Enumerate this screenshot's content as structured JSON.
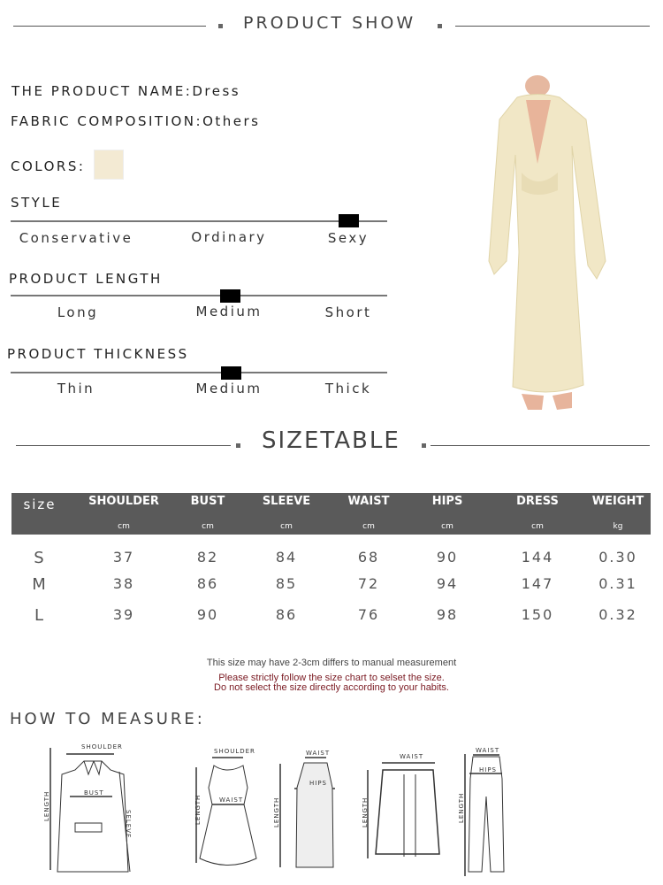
{
  "header": {
    "title": "PRODUCT SHOW"
  },
  "product": {
    "name_label": "THE PRODUCT NAME:",
    "name": "Dress",
    "fabric_label": "FABRIC COMPOSITION:",
    "fabric": "Others",
    "colors_label": "COLORS:",
    "color_swatch": "#f3ead3"
  },
  "scales": [
    {
      "title": "STYLE",
      "options": [
        "Conservative",
        "Ordinary",
        "Sexy"
      ],
      "selected": "Sexy"
    },
    {
      "title": "PRODUCT LENGTH",
      "options": [
        "Long",
        "Medium",
        "Short"
      ],
      "selected": "Medium"
    },
    {
      "title": "PRODUCT THICKNESS",
      "options": [
        "Thin",
        "Medium",
        "Thick"
      ],
      "selected": "Medium"
    }
  ],
  "sizetable": {
    "title": "SIZETABLE",
    "headers": [
      "size",
      "SHOULDER",
      "BUST",
      "SLEEVE",
      "WAIST",
      "HIPS",
      "DRESS",
      "WEIGHT"
    ],
    "units": [
      "",
      "cm",
      "cm",
      "cm",
      "cm",
      "cm",
      "cm",
      "kg"
    ],
    "rows": [
      [
        "S",
        "37",
        "82",
        "84",
        "68",
        "90",
        "144",
        "0.30"
      ],
      [
        "M",
        "38",
        "86",
        "85",
        "72",
        "94",
        "147",
        "0.31"
      ],
      [
        "L",
        "39",
        "90",
        "86",
        "76",
        "98",
        "150",
        "0.32"
      ]
    ],
    "note": "This size may have 2-3cm differs to manual measurement",
    "warning1": "Please strictly follow the size chart to selset the size.",
    "warning2": "Do not select the size directly according to your habits."
  },
  "measure": {
    "title": "HOW TO MEASURE:",
    "coat": {
      "shoulder": "SHOULDER",
      "bust": "BUST",
      "length": "LENGTH",
      "sleeve": "SELEVE"
    },
    "dress": {
      "shoulder": "SHOULDER",
      "waist": "WAIST",
      "length": "LENGTH"
    },
    "skirt": {
      "waist": "WAIST",
      "hips": "HIPS",
      "length": "LENGTH"
    },
    "shorts_skirt": {
      "waist": "WAIST",
      "length": "LENGTH"
    },
    "pants": {
      "waist": "WAIST",
      "hips": "HIPS",
      "length": "LENGTH"
    }
  }
}
